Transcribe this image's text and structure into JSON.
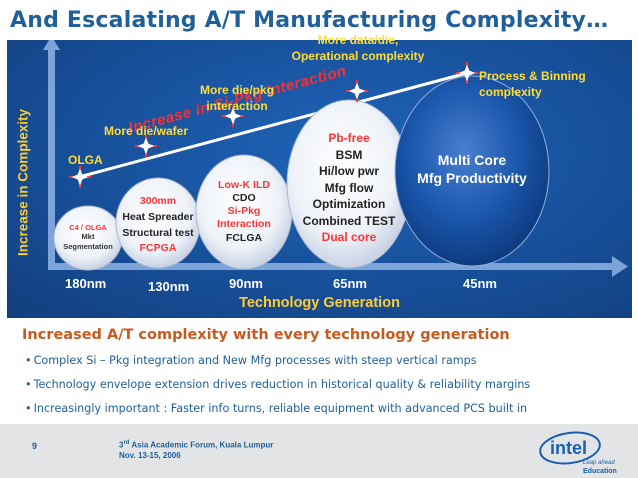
{
  "title": "And Escalating A/T Manufacturing Complexity…",
  "diagram": {
    "y_axis_label": "Increase in Complexity",
    "x_axis_label": "Technology Generation",
    "trend_label": "Increase in Si-Pkg Interaction",
    "nodes": [
      "180nm",
      "130nm",
      "90nm",
      "65nm",
      "45nm"
    ],
    "milestones": [
      {
        "label": "OLGA"
      },
      {
        "label": "More die/wafer"
      },
      {
        "label_lines": [
          "More die/pkg",
          "interaction"
        ]
      },
      {
        "label_lines": [
          "More data/die,",
          "Operational complexity"
        ]
      },
      {
        "label_lines": [
          "Process & Binning",
          "complexity"
        ]
      }
    ],
    "bubbles": [
      {
        "lines": [
          "C4 / OLGA",
          "Mkt",
          "Segmentation"
        ]
      },
      {
        "lines": [
          "300mm",
          "Heat Spreader",
          "Structural test",
          "FCPGA"
        ]
      },
      {
        "lines": [
          "Low-K ILD",
          "CDO",
          "Si-Pkg",
          "Interaction",
          "FCLGA"
        ]
      },
      {
        "lines": [
          "Pb-free",
          "BSM",
          "Hi/low pwr",
          "Mfg flow",
          "Optimization",
          "Combined TEST",
          "Dual core"
        ]
      },
      {
        "lines": [
          "Multi Core",
          "Mfg Productivity"
        ]
      }
    ]
  },
  "heading": "Increased A/T complexity with every technology generation",
  "bullets": [
    "Complex Si – Pkg integration and New Mfg processes with steep vertical ramps",
    "Technology envelope extension drives reduction in historical quality & reliability margins",
    "Increasingly important : Faster info turns, reliable equipment with advanced PCS built in"
  ],
  "footer": {
    "page_number": "9",
    "conf_line1_prefix": "3",
    "conf_line1_sup": "rd",
    "conf_line1_rest": " Asia Academic Forum, Kuala Lumpur",
    "conf_line2": "Nov. 13-15, 2006"
  },
  "logo": {
    "brand": "intel",
    "tagline": "Leap ahead",
    "sub": "Education"
  },
  "colors": {
    "accent_blue": "#1f5f9a",
    "heading_orange": "#c85a1f",
    "axis_yellow": "#ffcc33",
    "trend_red": "#ff2e2e"
  }
}
